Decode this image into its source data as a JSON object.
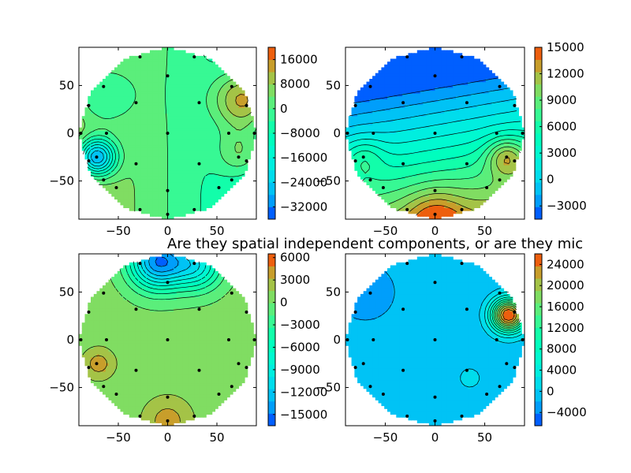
{
  "figure": {
    "title": "Are they spatial independent components, or are they mic"
  },
  "chart_data": [
    {
      "type": "contour",
      "xlim": [
        -90,
        90
      ],
      "ylim": [
        -90,
        90
      ],
      "xticks": [
        -50,
        0,
        50
      ],
      "yticks": [
        -50,
        0,
        50
      ],
      "colorbar_ticks": [
        16000,
        8000,
        0,
        -8000,
        -16000,
        -24000,
        -32000
      ],
      "colorbar_range": [
        -36000,
        20000
      ],
      "field": {
        "bias": 0,
        "gx": -120,
        "gy": 0,
        "sources": [
          {
            "x": -72,
            "y": -25,
            "a": -36000,
            "s": 14
          },
          {
            "x": -70,
            "y": 40,
            "a": -12000,
            "s": 25
          },
          {
            "x": 78,
            "y": 35,
            "a": 22000,
            "s": 22
          },
          {
            "x": 75,
            "y": -20,
            "a": 12000,
            "s": 18
          }
        ]
      },
      "electrodes": [
        [
          -28,
          80
        ],
        [
          27,
          80
        ],
        [
          -65,
          49
        ],
        [
          0,
          60
        ],
        [
          65,
          49
        ],
        [
          -80,
          29
        ],
        [
          -32,
          32
        ],
        [
          32,
          32
        ],
        [
          80,
          29
        ],
        [
          -88,
          0
        ],
        [
          -62,
          0
        ],
        [
          0,
          0
        ],
        [
          62,
          0
        ],
        [
          88,
          0
        ],
        [
          -80,
          -29
        ],
        [
          -32,
          -32
        ],
        [
          32,
          -32
        ],
        [
          80,
          -29
        ],
        [
          -65,
          -49
        ],
        [
          0,
          -60
        ],
        [
          65,
          -49
        ],
        [
          -28,
          -80
        ],
        [
          27,
          -80
        ],
        [
          0,
          -85
        ],
        [
          -52,
          -57
        ],
        [
          52,
          -57
        ],
        [
          -72,
          -25
        ],
        [
          72,
          -25
        ]
      ]
    },
    {
      "type": "contour",
      "xlim": [
        -90,
        90
      ],
      "ylim": [
        -90,
        90
      ],
      "xticks": [
        -50,
        0,
        50
      ],
      "yticks": [
        -50,
        0,
        50
      ],
      "colorbar_ticks": [
        15000,
        12000,
        9000,
        6000,
        3000,
        0,
        -3000
      ],
      "colorbar_range": [
        -4500,
        15000
      ],
      "field": {
        "bias": 2000,
        "gx": 20,
        "gy": -110,
        "sources": [
          {
            "x": 72,
            "y": -25,
            "a": 6000,
            "s": 14
          },
          {
            "x": -72,
            "y": -25,
            "a": 3000,
            "s": 14
          },
          {
            "x": 0,
            "y": -88,
            "a": 4000,
            "s": 20
          }
        ]
      },
      "electrodes": [
        [
          -28,
          80
        ],
        [
          27,
          80
        ],
        [
          -65,
          49
        ],
        [
          0,
          60
        ],
        [
          65,
          49
        ],
        [
          -80,
          29
        ],
        [
          -32,
          32
        ],
        [
          32,
          32
        ],
        [
          80,
          29
        ],
        [
          -88,
          0
        ],
        [
          -62,
          0
        ],
        [
          0,
          0
        ],
        [
          62,
          0
        ],
        [
          88,
          0
        ],
        [
          -80,
          -29
        ],
        [
          -32,
          -32
        ],
        [
          32,
          -32
        ],
        [
          80,
          -29
        ],
        [
          -65,
          -49
        ],
        [
          0,
          -60
        ],
        [
          65,
          -49
        ],
        [
          -28,
          -80
        ],
        [
          27,
          -80
        ],
        [
          0,
          -85
        ],
        [
          -52,
          -57
        ],
        [
          52,
          -57
        ],
        [
          -72,
          -25
        ],
        [
          72,
          -25
        ]
      ]
    },
    {
      "type": "contour",
      "xlim": [
        -90,
        90
      ],
      "ylim": [
        -90,
        90
      ],
      "xticks": [
        -50,
        0,
        50
      ],
      "yticks": [
        -50,
        0,
        50
      ],
      "colorbar_ticks": [
        6000,
        3000,
        0,
        -3000,
        -6000,
        -9000,
        -12000,
        -15000
      ],
      "colorbar_range": [
        -16500,
        6500
      ],
      "field": {
        "bias": 500,
        "gx": 0,
        "gy": 0,
        "sources": [
          {
            "x": -10,
            "y": 82,
            "a": -15000,
            "s": 20
          },
          {
            "x": 30,
            "y": 78,
            "a": -9000,
            "s": 18
          },
          {
            "x": -70,
            "y": -25,
            "a": 3500,
            "s": 12
          },
          {
            "x": 0,
            "y": -85,
            "a": 3500,
            "s": 18
          }
        ]
      },
      "electrodes": [
        [
          -28,
          80
        ],
        [
          27,
          80
        ],
        [
          -65,
          49
        ],
        [
          0,
          60
        ],
        [
          65,
          49
        ],
        [
          -80,
          29
        ],
        [
          -32,
          32
        ],
        [
          32,
          32
        ],
        [
          80,
          29
        ],
        [
          -88,
          0
        ],
        [
          -62,
          0
        ],
        [
          0,
          0
        ],
        [
          62,
          0
        ],
        [
          88,
          0
        ],
        [
          -80,
          -29
        ],
        [
          -32,
          -32
        ],
        [
          32,
          -32
        ],
        [
          80,
          -29
        ],
        [
          -65,
          -49
        ],
        [
          0,
          -60
        ],
        [
          65,
          -49
        ],
        [
          -28,
          -80
        ],
        [
          27,
          -80
        ],
        [
          0,
          -85
        ],
        [
          -52,
          -57
        ],
        [
          52,
          -57
        ],
        [
          -72,
          -25
        ],
        [
          72,
          -25
        ]
      ]
    },
    {
      "type": "contour",
      "xlim": [
        -90,
        90
      ],
      "ylim": [
        -90,
        90
      ],
      "xticks": [
        -50,
        0,
        50
      ],
      "yticks": [
        -50,
        0,
        50
      ],
      "colorbar_ticks": [
        24000,
        20000,
        16000,
        12000,
        8000,
        4000,
        0,
        -4000
      ],
      "colorbar_range": [
        -6500,
        26000
      ],
      "field": {
        "bias": -1000,
        "gx": 0,
        "gy": 0,
        "sources": [
          {
            "x": 74,
            "y": 26,
            "a": 28000,
            "s": 12
          },
          {
            "x": 35,
            "y": -40,
            "a": 3000,
            "s": 8
          },
          {
            "x": -70,
            "y": 50,
            "a": -2500,
            "s": 20
          }
        ]
      },
      "electrodes": [
        [
          -28,
          80
        ],
        [
          27,
          80
        ],
        [
          -65,
          49
        ],
        [
          0,
          60
        ],
        [
          65,
          49
        ],
        [
          -80,
          29
        ],
        [
          -32,
          32
        ],
        [
          32,
          32
        ],
        [
          80,
          29
        ],
        [
          -88,
          0
        ],
        [
          -62,
          0
        ],
        [
          0,
          0
        ],
        [
          62,
          0
        ],
        [
          88,
          0
        ],
        [
          -80,
          -29
        ],
        [
          -32,
          -32
        ],
        [
          32,
          -32
        ],
        [
          80,
          -29
        ],
        [
          -65,
          -49
        ],
        [
          0,
          -60
        ],
        [
          65,
          -49
        ],
        [
          -28,
          -80
        ],
        [
          27,
          -80
        ],
        [
          0,
          -85
        ],
        [
          -52,
          -57
        ],
        [
          52,
          -57
        ],
        [
          -72,
          -25
        ],
        [
          72,
          -25
        ]
      ]
    }
  ]
}
